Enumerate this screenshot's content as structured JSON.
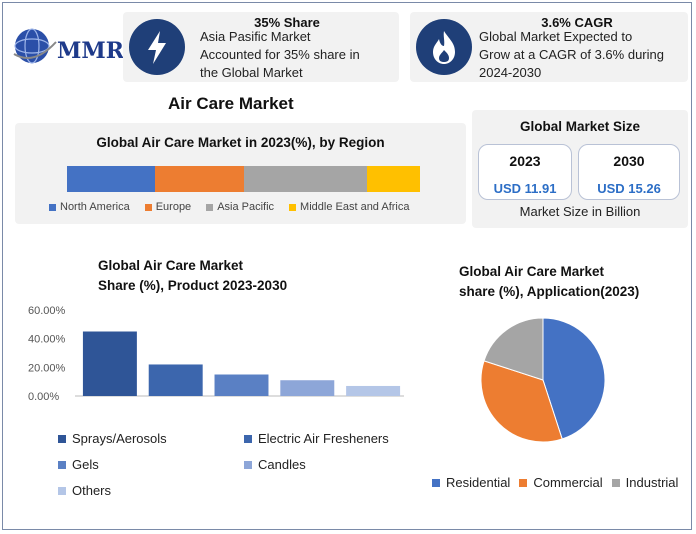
{
  "logo": {
    "text": "MMR"
  },
  "stats": [
    {
      "title": "35% Share",
      "body": [
        "Asia Pasific Market",
        "Accounted for 35% share in",
        "the Global Market"
      ],
      "icon": "lightning-icon"
    },
    {
      "title": "3.6% CAGR",
      "body": [
        "Global Market Expected to",
        "Grow at a CAGR of 3.6% during",
        "2024-2030"
      ],
      "icon": "flame-icon"
    }
  ],
  "main_title": "Air Care Market",
  "market_size": {
    "title": "Global Market Size",
    "years": [
      {
        "year": "2023",
        "value": "USD 11.91"
      },
      {
        "year": "2030",
        "value": "USD 15.26"
      }
    ],
    "caption": "Market Size in Billion"
  },
  "chart_data": [
    {
      "type": "bar",
      "orientation": "horizontal-stacked",
      "title": "Global Air Care Market in 2023(%), by Region",
      "series": [
        {
          "name": "North America",
          "value": 25,
          "color": "#4472c4"
        },
        {
          "name": "Europe",
          "value": 25,
          "color": "#ed7d31"
        },
        {
          "name": "Asia Pacific",
          "value": 35,
          "color": "#a5a5a5"
        },
        {
          "name": "Middle East and Africa",
          "value": 15,
          "color": "#ffc000"
        }
      ]
    },
    {
      "type": "bar",
      "title_lines": [
        "Global Air Care Market",
        "Share (%), Product 2023-2030"
      ],
      "categories": [
        "Sprays/Aerosols",
        "Electric Air Fresheners",
        "Gels",
        "Candles",
        "Others"
      ],
      "values": [
        45,
        22,
        15,
        11,
        7
      ],
      "colors": [
        "#2f5597",
        "#3c66ad",
        "#5a80c4",
        "#8da6d8",
        "#b4c6e7"
      ],
      "y_ticks": [
        "60.00%",
        "40.00%",
        "20.00%",
        "0.00%"
      ],
      "ylim": [
        0,
        60
      ]
    },
    {
      "type": "pie",
      "title_lines": [
        "Global Air Care Market",
        "share (%), Application(2023)"
      ],
      "slices": [
        {
          "name": "Residential",
          "value": 45,
          "color": "#4472c4"
        },
        {
          "name": "Commercial",
          "value": 35,
          "color": "#ed7d31"
        },
        {
          "name": "Industrial",
          "value": 20,
          "color": "#a5a5a5"
        }
      ]
    }
  ]
}
